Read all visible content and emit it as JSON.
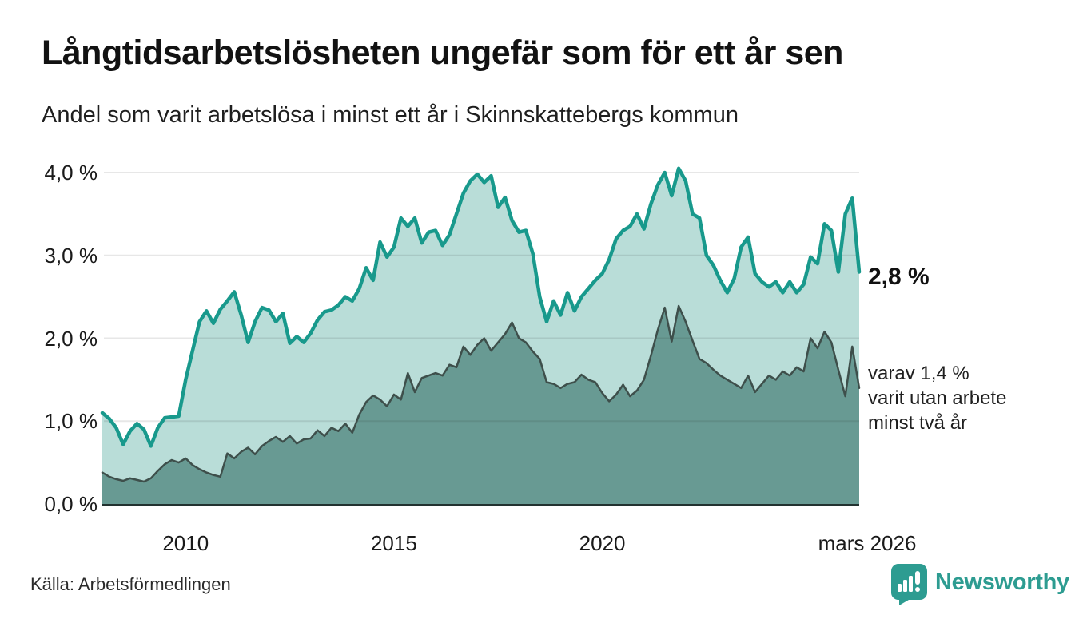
{
  "header": {
    "title": "Långtidsarbetslösheten ungefär som för ett år sen",
    "subtitle": "Andel som varit arbetslösa i minst ett år i Skinnskattebergs kommun"
  },
  "annotations": {
    "latest_value": "2,8 %",
    "sub_series_note": "varav 1,4 %\nvarit utan arbete\nminst två år"
  },
  "footer": {
    "source": "Källa: Arbetsförmedlingen",
    "brand": "Newsworthy"
  },
  "colors": {
    "upper_line": "#18998c",
    "upper_fill": "#b9ddd8",
    "lower_line": "#3e4f4b",
    "lower_fill": "#689a93",
    "axis_line": "#223230",
    "gridline": "rgba(40,40,40,0.11)",
    "brand_teal": "#2d9c91",
    "text": "#1a1a1a"
  },
  "chart_data": {
    "type": "area",
    "title": "Långtidsarbetslösheten ungefär som för ett år sen",
    "subtitle": "Andel som varit arbetslösa i minst ett år i Skinnskattebergs kommun",
    "unit": "%",
    "x_unit": "decimal_year",
    "x_start_year": 2008.0,
    "x_end_year": 2026.1667,
    "x_step_months": 2,
    "x_end_label": "mars 2026",
    "ylim": [
      0,
      4.25
    ],
    "grid": true,
    "legend": "none",
    "y_ticks": [
      {
        "value": 0,
        "label": "0,0 %"
      },
      {
        "value": 1,
        "label": "1,0 %"
      },
      {
        "value": 2,
        "label": "2,0 %"
      },
      {
        "value": 3,
        "label": "3,0 %"
      },
      {
        "value": 4,
        "label": "4,0 %"
      }
    ],
    "x_ticks": [
      {
        "year": 2010,
        "label": "2010"
      },
      {
        "year": 2015,
        "label": "2015"
      },
      {
        "year": 2020,
        "label": "2020"
      },
      {
        "year": 2026.1667,
        "label": "mars 2026"
      }
    ],
    "series": [
      {
        "name": "Andel arbetslösa minst ett år",
        "latest_value": 2.8,
        "line_color": "#18998c",
        "fill_color": "#b9ddd8",
        "values": [
          1.1,
          1.03,
          0.92,
          0.72,
          0.88,
          0.97,
          0.9,
          0.7,
          0.92,
          1.04,
          1.05,
          1.06,
          1.5,
          1.85,
          2.2,
          2.33,
          2.18,
          2.35,
          2.45,
          2.56,
          2.28,
          1.95,
          2.2,
          2.37,
          2.34,
          2.2,
          2.3,
          1.94,
          2.02,
          1.95,
          2.06,
          2.22,
          2.32,
          2.34,
          2.4,
          2.5,
          2.45,
          2.6,
          2.85,
          2.7,
          3.16,
          2.98,
          3.1,
          3.45,
          3.35,
          3.45,
          3.15,
          3.28,
          3.3,
          3.12,
          3.25,
          3.5,
          3.75,
          3.9,
          3.98,
          3.88,
          3.96,
          3.58,
          3.7,
          3.42,
          3.28,
          3.3,
          3.02,
          2.5,
          2.2,
          2.45,
          2.28,
          2.55,
          2.33,
          2.5,
          2.6,
          2.7,
          2.78,
          2.95,
          3.2,
          3.3,
          3.35,
          3.5,
          3.32,
          3.62,
          3.85,
          4.0,
          3.72,
          4.05,
          3.9,
          3.5,
          3.45,
          3.0,
          2.88,
          2.7,
          2.55,
          2.72,
          3.1,
          3.22,
          2.78,
          2.68,
          2.62,
          2.68,
          2.55,
          2.68,
          2.55,
          2.65,
          2.98,
          2.9,
          3.38,
          3.3,
          2.8,
          3.5,
          3.69,
          2.8
        ]
      },
      {
        "name": "varav utan arbete minst två år",
        "latest_value": 1.4,
        "line_color": "#3e4f4b",
        "fill_color": "#689a93",
        "values": [
          0.38,
          0.33,
          0.3,
          0.28,
          0.31,
          0.29,
          0.27,
          0.31,
          0.4,
          0.48,
          0.53,
          0.5,
          0.55,
          0.47,
          0.42,
          0.38,
          0.35,
          0.33,
          0.61,
          0.55,
          0.63,
          0.68,
          0.6,
          0.7,
          0.76,
          0.81,
          0.75,
          0.82,
          0.73,
          0.78,
          0.79,
          0.89,
          0.82,
          0.92,
          0.88,
          0.97,
          0.86,
          1.08,
          1.23,
          1.31,
          1.26,
          1.18,
          1.32,
          1.26,
          1.58,
          1.35,
          1.52,
          1.55,
          1.58,
          1.55,
          1.68,
          1.65,
          1.9,
          1.8,
          1.92,
          2.0,
          1.85,
          1.95,
          2.05,
          2.19,
          2.0,
          1.95,
          1.84,
          1.75,
          1.47,
          1.45,
          1.4,
          1.45,
          1.47,
          1.56,
          1.5,
          1.47,
          1.34,
          1.24,
          1.32,
          1.44,
          1.3,
          1.37,
          1.5,
          1.79,
          2.1,
          2.37,
          1.96,
          2.39,
          2.2,
          1.97,
          1.75,
          1.7,
          1.62,
          1.55,
          1.5,
          1.45,
          1.4,
          1.55,
          1.35,
          1.45,
          1.55,
          1.5,
          1.6,
          1.55,
          1.65,
          1.6,
          2.0,
          1.88,
          2.08,
          1.95,
          1.62,
          1.3,
          1.9,
          1.4
        ]
      }
    ]
  }
}
